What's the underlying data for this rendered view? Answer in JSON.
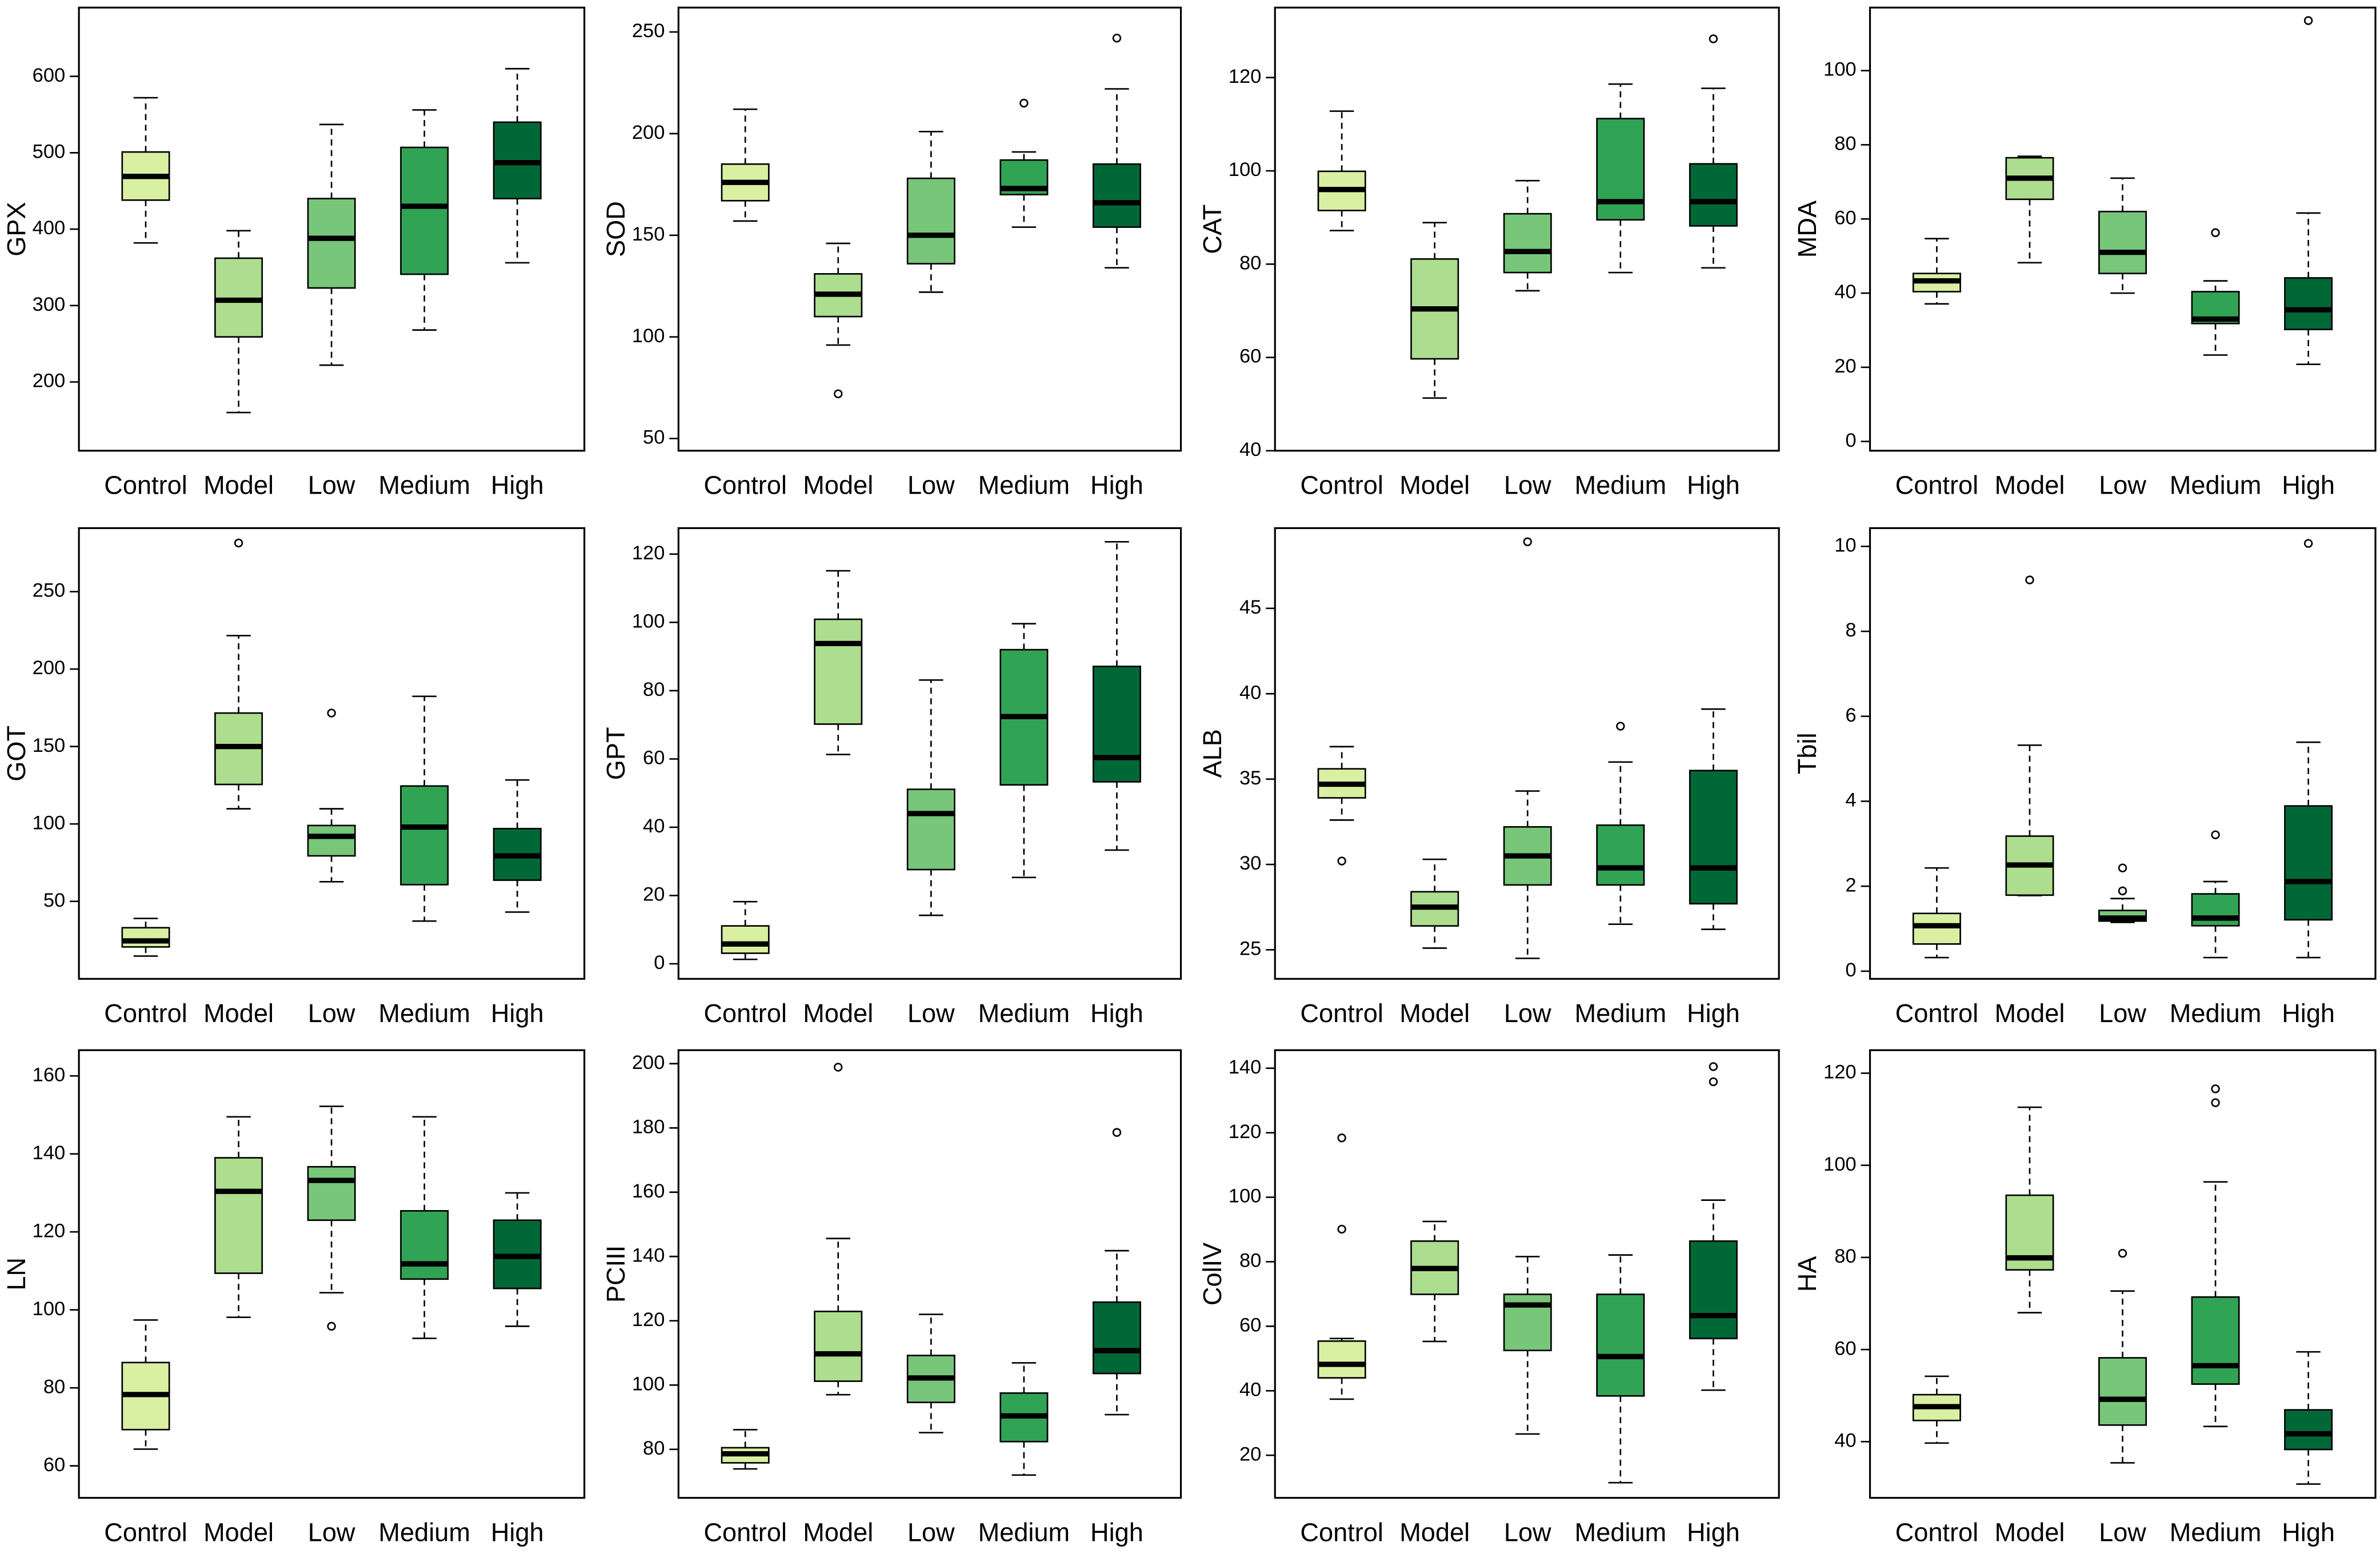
{
  "chart_data": [
    {
      "type": "box",
      "ylabel": "GPX",
      "categories": [
        "Control",
        "Model",
        "Low",
        "Medium",
        "High"
      ],
      "colors": [
        "#d9f0a3",
        "#addd8e",
        "#78c679",
        "#31a354",
        "#006837"
      ],
      "ylim": [
        110,
        690
      ],
      "yticks": [
        200,
        300,
        400,
        500,
        600
      ],
      "min": [
        382,
        160,
        222,
        268,
        356
      ],
      "q1": [
        438,
        259,
        323,
        341,
        440
      ],
      "median": [
        469,
        307,
        388,
        430,
        487
      ],
      "q3": [
        501,
        362,
        440,
        507,
        540
      ],
      "max": [
        572,
        398,
        537,
        556,
        610
      ],
      "outliers": [
        [],
        [],
        [],
        [],
        []
      ]
    },
    {
      "type": "box",
      "ylabel": "SOD",
      "categories": [
        "Control",
        "Model",
        "Low",
        "Medium",
        "High"
      ],
      "colors": [
        "#d9f0a3",
        "#addd8e",
        "#78c679",
        "#31a354",
        "#006837"
      ],
      "ylim": [
        44,
        262
      ],
      "yticks": [
        50,
        100,
        150,
        200,
        250
      ],
      "min": [
        157,
        96,
        122,
        154,
        134
      ],
      "q1": [
        167,
        110,
        136,
        170,
        154
      ],
      "median": [
        176,
        121,
        150,
        173,
        166
      ],
      "q3": [
        185,
        131,
        178,
        187,
        185
      ],
      "max": [
        212,
        146,
        201,
        191,
        222
      ],
      "outliers": [
        [],
        [
          72
        ],
        [],
        [
          215
        ],
        [
          247
        ]
      ]
    },
    {
      "type": "box",
      "ylabel": "CAT",
      "categories": [
        "Control",
        "Model",
        "Low",
        "Medium",
        "High"
      ],
      "colors": [
        "#d9f0a3",
        "#addd8e",
        "#78c679",
        "#31a354",
        "#006837"
      ],
      "ylim": [
        40,
        135
      ],
      "yticks": [
        40,
        60,
        80,
        100,
        120
      ],
      "min": [
        87.2,
        51.3,
        74.3,
        78.2,
        79.2
      ],
      "q1": [
        91.5,
        59.7,
        78.2,
        89.5,
        88.2
      ],
      "median": [
        96,
        70.4,
        82.7,
        93.4,
        93.4
      ],
      "q3": [
        99.9,
        81.1,
        90.8,
        111.2,
        101.5
      ],
      "max": [
        112.8,
        88.9,
        97.9,
        118.6,
        117.7
      ],
      "outliers": [
        [],
        [],
        [],
        [],
        [
          128.3
        ]
      ]
    },
    {
      "type": "box",
      "ylabel": "MDA",
      "categories": [
        "Control",
        "Model",
        "Low",
        "Medium",
        "High"
      ],
      "colors": [
        "#d9f0a3",
        "#addd8e",
        "#78c679",
        "#31a354",
        "#006837"
      ],
      "ylim": [
        -2.5,
        117
      ],
      "yticks": [
        0,
        20,
        40,
        60,
        80,
        100
      ],
      "min": [
        37.1,
        48.2,
        40,
        23.3,
        20.8
      ],
      "q1": [
        40.4,
        65.3,
        45.3,
        31.8,
        30.2
      ],
      "median": [
        43.3,
        71,
        51,
        33,
        35.5
      ],
      "q3": [
        45.3,
        76.5,
        62,
        40.4,
        44.1
      ],
      "max": [
        54.7,
        76.9,
        71,
        43.3,
        61.6
      ],
      "outliers": [
        [],
        [],
        [],
        [
          56.3
        ],
        [
          113.5
        ]
      ]
    },
    {
      "type": "box",
      "ylabel": "GOT",
      "categories": [
        "Control",
        "Model",
        "Low",
        "Medium",
        "High"
      ],
      "colors": [
        "#d9f0a3",
        "#addd8e",
        "#78c679",
        "#31a354",
        "#006837"
      ],
      "ylim": [
        0,
        291
      ],
      "yticks": [
        50,
        100,
        150,
        200,
        250
      ],
      "min": [
        14.7,
        109.8,
        62.7,
        37.3,
        43.1
      ],
      "q1": [
        20.6,
        125.5,
        79.4,
        60.8,
        63.7
      ],
      "median": [
        24.5,
        150,
        92,
        98,
        79.4
      ],
      "q3": [
        33,
        171.6,
        99,
        124.5,
        97
      ],
      "max": [
        39,
        221.6,
        109.8,
        182.4,
        128.4
      ],
      "outliers": [
        [],
        [
          281.4
        ],
        [
          171.6
        ],
        [],
        []
      ]
    },
    {
      "type": "box",
      "ylabel": "GPT",
      "categories": [
        "Control",
        "Model",
        "Low",
        "Medium",
        "High"
      ],
      "colors": [
        "#d9f0a3",
        "#addd8e",
        "#78c679",
        "#31a354",
        "#006837"
      ],
      "ylim": [
        -4.4,
        127.6
      ],
      "yticks": [
        0,
        20,
        40,
        60,
        80,
        100,
        120
      ],
      "min": [
        1.3,
        61.3,
        14.2,
        25.3,
        33.3
      ],
      "q1": [
        3.1,
        70.2,
        27.6,
        52.4,
        53.3
      ],
      "median": [
        5.8,
        93.8,
        44,
        72.4,
        60.4
      ],
      "q3": [
        11.1,
        100.9,
        51.1,
        92,
        87.1
      ],
      "max": [
        18.2,
        115.1,
        83.1,
        99.6,
        123.6
      ],
      "outliers": [
        [],
        [],
        [],
        [],
        []
      ]
    },
    {
      "type": "box",
      "ylabel": "ALB",
      "categories": [
        "Control",
        "Model",
        "Low",
        "Medium",
        "High"
      ],
      "colors": [
        "#d9f0a3",
        "#addd8e",
        "#78c679",
        "#31a354",
        "#006837"
      ],
      "ylim": [
        23.3,
        49.7
      ],
      "yticks": [
        25,
        30,
        35,
        40,
        45
      ],
      "min": [
        32.6,
        25.1,
        24.5,
        26.5,
        26.2
      ],
      "q1": [
        33.9,
        26.4,
        28.8,
        28.8,
        27.7
      ],
      "median": [
        34.7,
        27.5,
        30.5,
        29.8,
        29.8
      ],
      "q3": [
        35.6,
        28.4,
        32.2,
        32.3,
        35.5
      ],
      "max": [
        36.9,
        30.3,
        34.3,
        36,
        39.1
      ],
      "outliers": [
        [
          30.2
        ],
        [],
        [
          48.9
        ],
        [
          38.1
        ],
        []
      ]
    },
    {
      "type": "box",
      "ylabel": "Tbil",
      "categories": [
        "Control",
        "Model",
        "Low",
        "Medium",
        "High"
      ],
      "colors": [
        "#d9f0a3",
        "#addd8e",
        "#78c679",
        "#31a354",
        "#006837"
      ],
      "ylim": [
        -0.18,
        10.43
      ],
      "yticks": [
        0,
        2,
        4,
        6,
        8,
        10
      ],
      "min": [
        0.32,
        1.78,
        1.15,
        0.32,
        0.32
      ],
      "q1": [
        0.64,
        1.79,
        1.18,
        1.07,
        1.21
      ],
      "median": [
        1.07,
        2.5,
        1.25,
        1.25,
        2.11
      ],
      "q3": [
        1.36,
        3.18,
        1.43,
        1.82,
        3.89
      ],
      "max": [
        2.43,
        5.32,
        1.71,
        2.11,
        5.39
      ],
      "outliers": [
        [],
        [
          9.21
        ],
        [
          2.43,
          1.89
        ],
        [
          3.21
        ],
        [
          10.07
        ]
      ]
    },
    {
      "type": "box",
      "ylabel": "LN",
      "categories": [
        "Control",
        "Model",
        "Low",
        "Medium",
        "High"
      ],
      "colors": [
        "#d9f0a3",
        "#addd8e",
        "#78c679",
        "#31a354",
        "#006837"
      ],
      "ylim": [
        51.8,
        166.6
      ],
      "yticks": [
        60,
        80,
        100,
        120,
        140,
        160
      ],
      "min": [
        64.3,
        98.1,
        104.4,
        92.7,
        95.8
      ],
      "q1": [
        69.3,
        109.4,
        123,
        107.9,
        105.5
      ],
      "median": [
        78.3,
        130.4,
        133.2,
        111.8,
        113.7
      ],
      "q3": [
        86.5,
        139,
        136.7,
        125.4,
        123
      ],
      "max": [
        97.4,
        149.5,
        152.2,
        149.5,
        130
      ],
      "outliers": [
        [],
        [],
        [
          95.8
        ],
        [],
        []
      ]
    },
    {
      "type": "box",
      "ylabel": "PCIII",
      "categories": [
        "Control",
        "Model",
        "Low",
        "Medium",
        "High"
      ],
      "colors": [
        "#d9f0a3",
        "#addd8e",
        "#78c679",
        "#31a354",
        "#006837"
      ],
      "ylim": [
        64.9,
        204.2
      ],
      "yticks": [
        80,
        100,
        120,
        140,
        160,
        180,
        200
      ],
      "min": [
        73.9,
        97,
        85.2,
        72,
        90.8
      ],
      "q1": [
        75.8,
        101.2,
        94.6,
        82.4,
        103.6
      ],
      "median": [
        78.6,
        109.7,
        102.2,
        90.4,
        110.7
      ],
      "q3": [
        80.5,
        122.9,
        109.2,
        97.5,
        125.8
      ],
      "max": [
        86.1,
        145.6,
        122,
        106.9,
        141.8
      ],
      "outliers": [
        [],
        [
          198.9
        ],
        [],
        [],
        [
          178.6
        ]
      ]
    },
    {
      "type": "box",
      "ylabel": "ColIV",
      "categories": [
        "Control",
        "Model",
        "Low",
        "Medium",
        "High"
      ],
      "colors": [
        "#d9f0a3",
        "#addd8e",
        "#78c679",
        "#31a354",
        "#006837"
      ],
      "ylim": [
        6.8,
        145.6
      ],
      "yticks": [
        20,
        40,
        60,
        80,
        100,
        120,
        140
      ],
      "min": [
        37.4,
        55.3,
        26.6,
        11.5,
        40.2
      ],
      "q1": [
        44,
        69.9,
        52.5,
        38.4,
        56.2
      ],
      "median": [
        48.2,
        77.9,
        66.6,
        50.6,
        63.3
      ],
      "q3": [
        55.4,
        86.4,
        69.9,
        69.9,
        86.4
      ],
      "max": [
        56.2,
        92.5,
        81.6,
        82.1,
        99.1
      ],
      "outliers": [
        [
          118.4,
          90.1
        ],
        [],
        [],
        [],
        [
          140.5,
          135.8
        ]
      ]
    },
    {
      "type": "box",
      "ylabel": "HA",
      "categories": [
        "Control",
        "Model",
        "Low",
        "Medium",
        "High"
      ],
      "colors": [
        "#d9f0a3",
        "#addd8e",
        "#78c679",
        "#31a354",
        "#006837"
      ],
      "ylim": [
        27.8,
        125
      ],
      "yticks": [
        40,
        60,
        80,
        100,
        120
      ],
      "min": [
        39.7,
        68,
        35.4,
        43.3,
        30.8
      ],
      "q1": [
        44.6,
        77.3,
        43.6,
        52.5,
        38.3
      ],
      "median": [
        47.6,
        79.9,
        49.2,
        56.5,
        41.7
      ],
      "q3": [
        50.2,
        93.5,
        58.2,
        71.4,
        46.9
      ],
      "max": [
        54.2,
        112.6,
        72.7,
        96.4,
        59.5
      ],
      "outliers": [
        [],
        [],
        [
          80.9
        ],
        [
          116.6,
          113.6
        ],
        []
      ]
    }
  ]
}
